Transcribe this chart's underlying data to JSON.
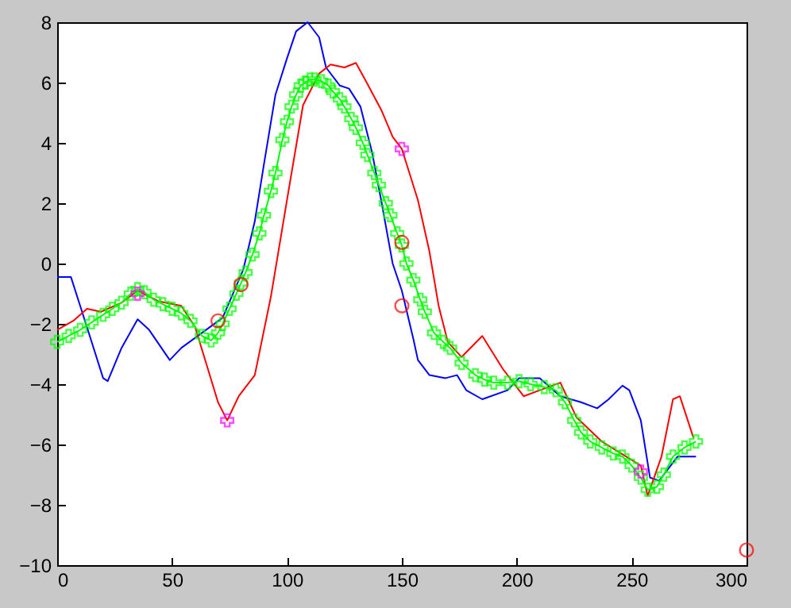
{
  "chart_data": {
    "type": "line",
    "xlim": [
      0,
      300
    ],
    "xticks": [
      0,
      50,
      100,
      150,
      200,
      250,
      300
    ],
    "ylim": [
      -10,
      8
    ],
    "yticks": [
      -10,
      -8,
      -6,
      -4,
      -2,
      0,
      2,
      4,
      6,
      8
    ],
    "grid": false,
    "legend": false,
    "series": [
      {
        "color": "#0000ff",
        "type": "line",
        "marker": "none",
        "x": [
          0,
          6,
          10,
          15,
          20,
          22,
          28,
          35,
          40,
          49,
          54,
          63,
          72,
          81,
          86,
          90,
          95,
          100,
          104,
          109,
          114,
          117,
          123,
          127,
          132,
          137,
          141,
          146,
          150,
          155,
          157,
          162,
          169,
          174,
          178,
          185,
          196,
          201,
          210,
          219,
          228,
          235,
          240,
          246,
          249,
          254,
          258,
          262,
          270,
          278
        ],
        "values": [
          -0.45,
          -0.45,
          -1.4,
          -2.6,
          -3.8,
          -3.9,
          -2.8,
          -1.85,
          -2.2,
          -3.2,
          -2.8,
          -2.3,
          -1.8,
          -0.2,
          1.4,
          3.3,
          5.6,
          6.8,
          7.7,
          8.0,
          7.5,
          6.5,
          5.9,
          5.8,
          5.2,
          3.7,
          2.1,
          0.0,
          -0.9,
          -2.5,
          -3.2,
          -3.7,
          -3.8,
          -3.7,
          -4.2,
          -4.5,
          -4.2,
          -3.8,
          -3.8,
          -4.4,
          -4.6,
          -4.8,
          -4.5,
          -4.05,
          -4.2,
          -5.2,
          -7.1,
          -7.2,
          -6.4,
          -6.4
        ]
      },
      {
        "color": "#ff0000",
        "type": "line",
        "marker": "none",
        "x": [
          0,
          7,
          13,
          19,
          28,
          35,
          44,
          54,
          60,
          65,
          70,
          74,
          79,
          86,
          93,
          100,
          107,
          114,
          119,
          125,
          130,
          134,
          141,
          146,
          150,
          157,
          162,
          166,
          170,
          176,
          185,
          194,
          203,
          210,
          219,
          226,
          237,
          254,
          257,
          263,
          268,
          271,
          277
        ],
        "values": [
          -2.2,
          -1.9,
          -1.5,
          -1.6,
          -1.3,
          -0.9,
          -1.25,
          -1.4,
          -2.1,
          -3.35,
          -4.6,
          -5.2,
          -4.4,
          -3.7,
          -1.1,
          2.1,
          5.25,
          6.3,
          6.6,
          6.5,
          6.65,
          6.1,
          5.1,
          4.2,
          3.8,
          2.1,
          0.4,
          -1.4,
          -2.6,
          -3.1,
          -2.4,
          -3.5,
          -4.4,
          -4.2,
          -3.95,
          -5.1,
          -5.9,
          -6.7,
          -7.7,
          -6.4,
          -4.5,
          -4.4,
          -5.8
        ]
      },
      {
        "color": "#00ff00",
        "type": "line",
        "marker": "cross",
        "x": [
          0,
          5,
          10,
          15,
          20,
          24,
          28,
          32,
          35,
          38,
          42,
          46,
          50,
          54,
          58,
          63,
          67,
          70,
          72,
          75,
          78,
          80,
          82,
          85,
          88,
          90,
          93,
          95,
          98,
          100,
          102,
          104,
          106,
          108,
          110,
          112,
          115,
          118,
          120,
          123,
          125,
          128,
          130,
          133,
          135,
          138,
          140,
          143,
          145,
          148,
          150,
          152,
          155,
          158,
          160,
          164,
          168,
          171,
          176,
          182,
          186,
          190,
          196,
          201,
          206,
          212,
          217,
          221,
          225,
          228,
          232,
          237,
          242,
          246,
          250,
          254,
          257,
          261,
          264,
          268,
          273,
          278
        ],
        "values": [
          -2.6,
          -2.4,
          -2.2,
          -1.95,
          -1.7,
          -1.5,
          -1.3,
          -1.0,
          -0.85,
          -0.95,
          -1.2,
          -1.35,
          -1.5,
          -1.65,
          -1.9,
          -2.4,
          -2.55,
          -2.3,
          -2.0,
          -1.5,
          -1.0,
          -0.65,
          -0.3,
          0.3,
          1.0,
          1.6,
          2.4,
          3.0,
          4.1,
          4.7,
          5.2,
          5.6,
          5.9,
          6.0,
          6.1,
          6.1,
          6.05,
          5.9,
          5.7,
          5.45,
          5.2,
          4.8,
          4.5,
          4.0,
          3.6,
          3.0,
          2.6,
          2.0,
          1.6,
          1.0,
          0.6,
          0.0,
          -0.55,
          -1.2,
          -1.6,
          -2.3,
          -2.6,
          -2.8,
          -3.3,
          -3.7,
          -3.85,
          -3.95,
          -3.95,
          -3.9,
          -4.0,
          -4.1,
          -4.2,
          -4.6,
          -5.2,
          -5.6,
          -5.9,
          -6.1,
          -6.3,
          -6.4,
          -6.7,
          -7.1,
          -7.5,
          -7.4,
          -7.0,
          -6.4,
          -6.1,
          -5.9
        ]
      },
      {
        "color": "#ff00ff",
        "type": "scatter",
        "marker": "cross",
        "x": [
          35,
          74,
          150,
          254
        ],
        "values": [
          -1.0,
          -5.2,
          3.8,
          -6.9
        ]
      },
      {
        "color": "#ff0000",
        "type": "scatter",
        "marker": "circle",
        "x": [
          70,
          80,
          150,
          150,
          300
        ],
        "values": [
          -1.9,
          -0.7,
          0.7,
          -1.4,
          -9.5
        ]
      }
    ]
  }
}
